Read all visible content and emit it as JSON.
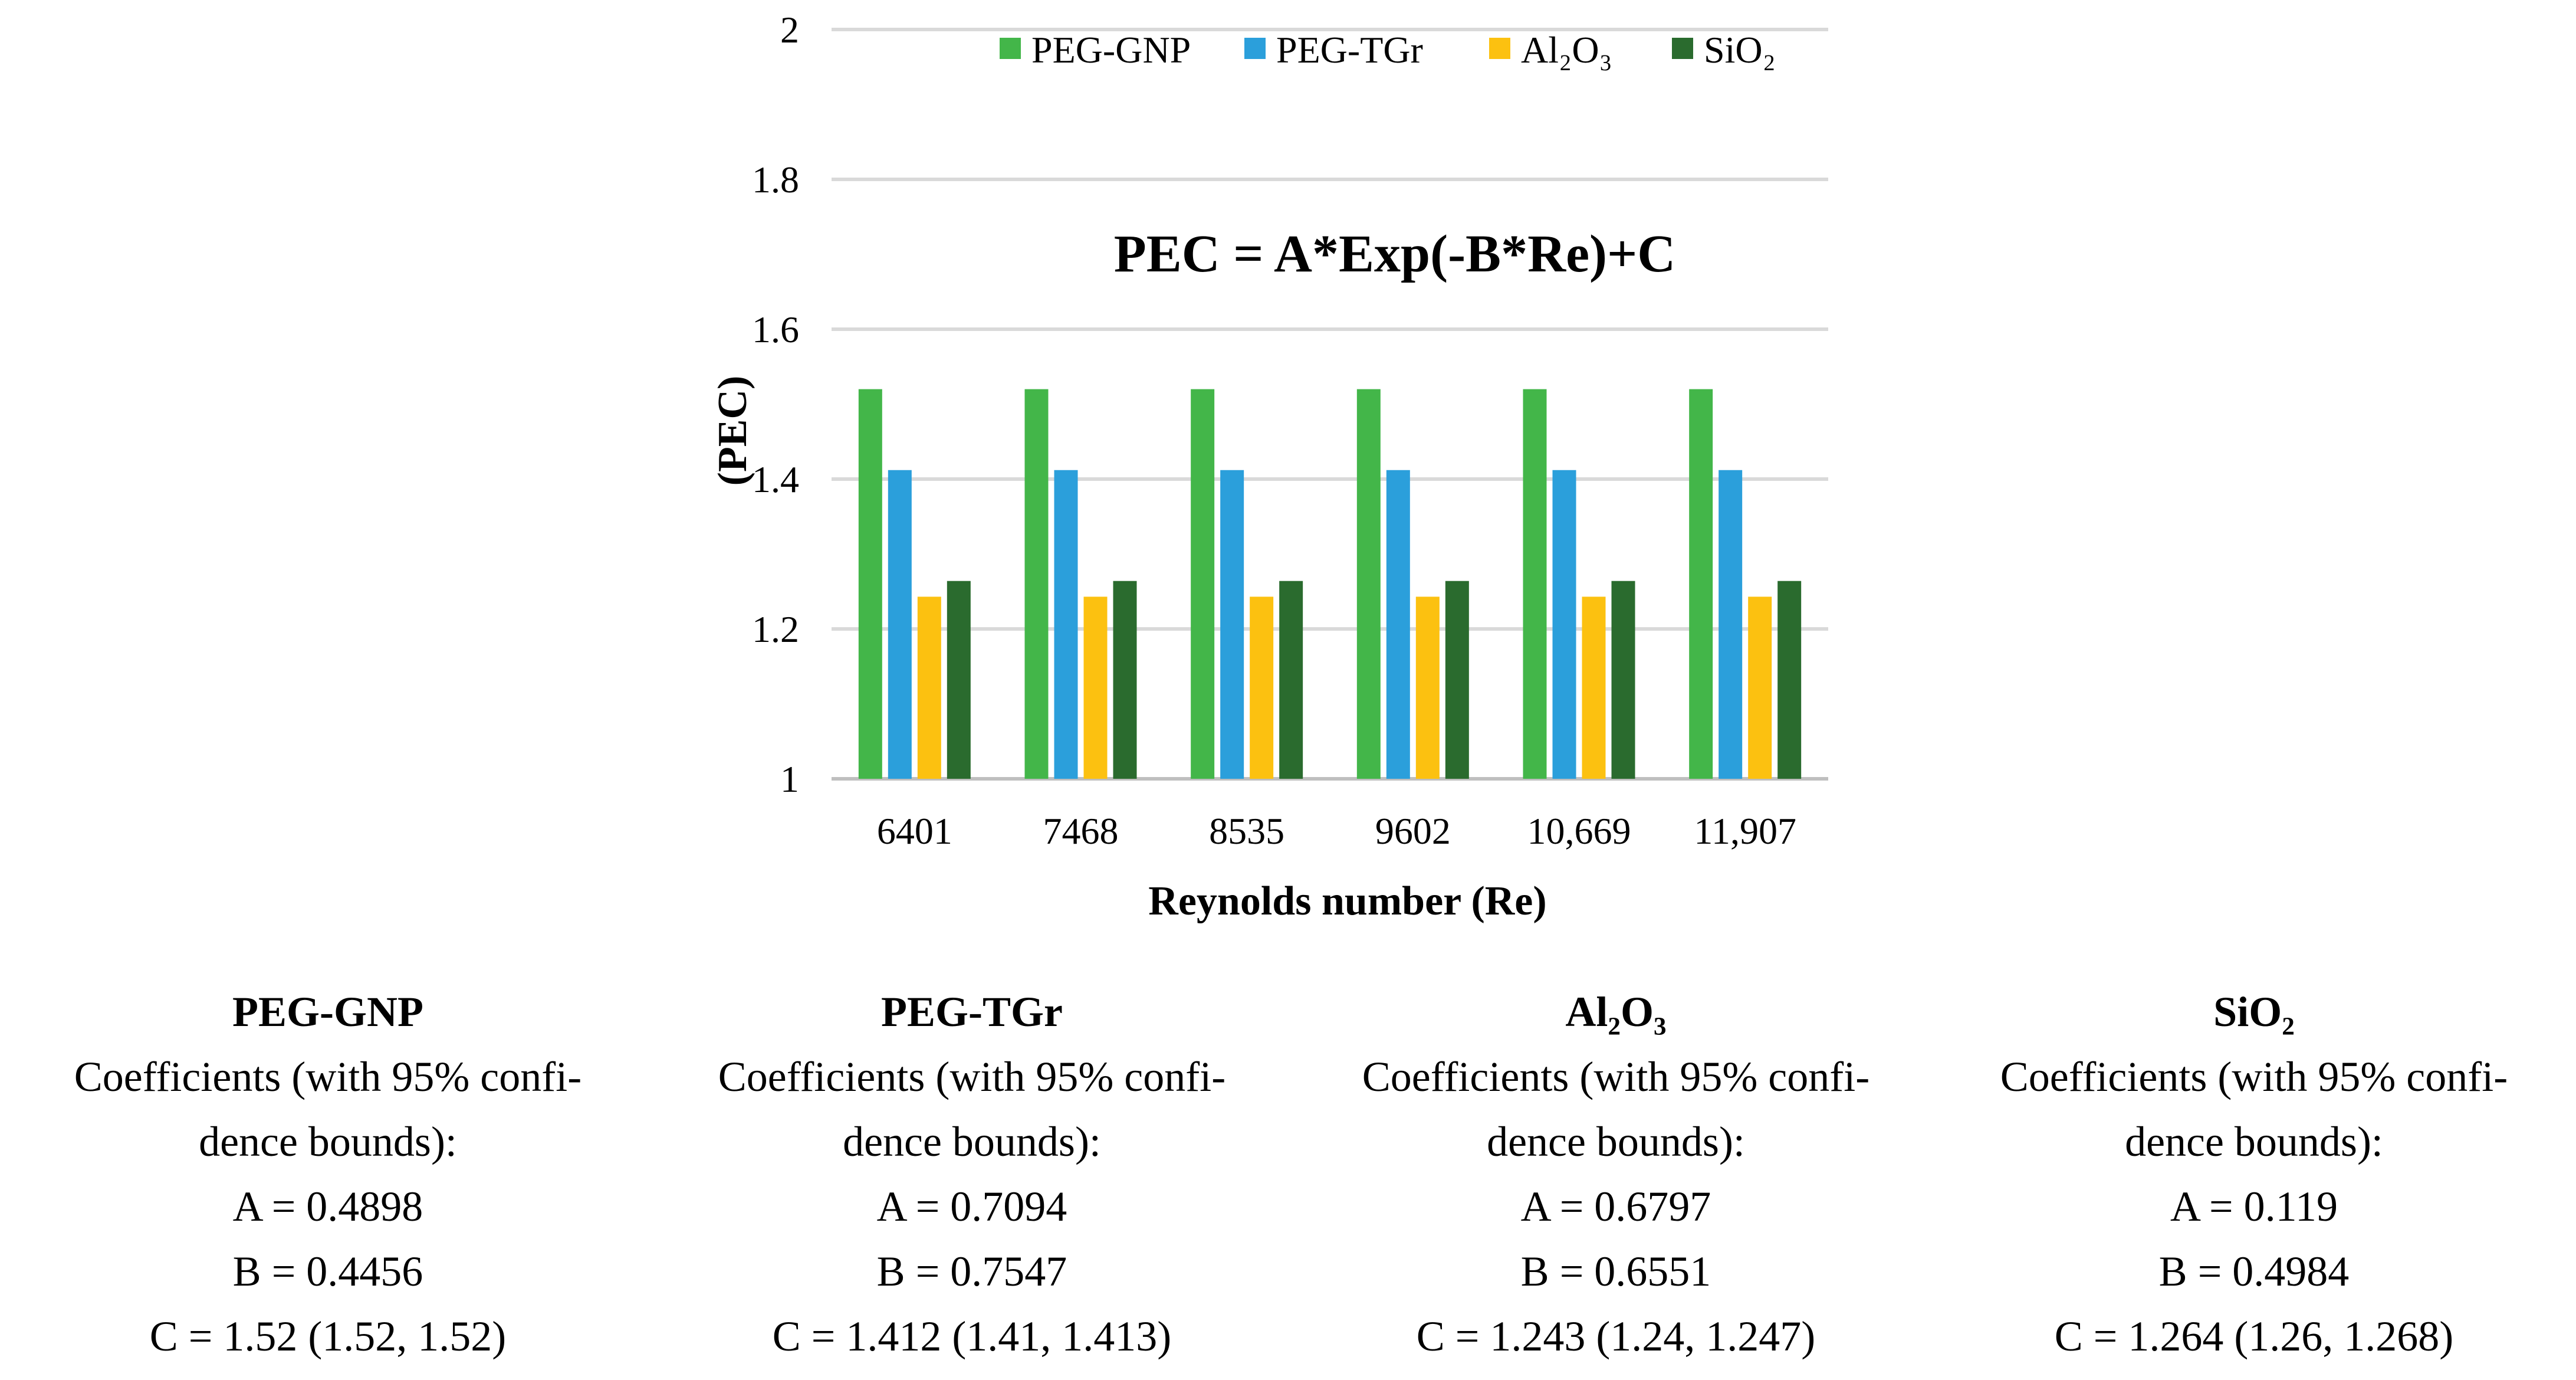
{
  "chart_data": {
    "type": "bar",
    "title": "PEC = A*Exp(-B*Re)+C",
    "xlabel": "Reynolds number (Re)",
    "ylabel": "(PEC)",
    "ylim": [
      1,
      2
    ],
    "yticks": [
      "1",
      "1.2",
      "1.4",
      "1.6",
      "1.8",
      "2"
    ],
    "ytick_values": [
      1,
      1.2,
      1.4,
      1.6,
      1.8,
      2
    ],
    "categories": [
      "6401",
      "7468",
      "8535",
      "9602",
      "10,669",
      "11,907"
    ],
    "legend_position": "top",
    "series": [
      {
        "name": "PEG-GNP",
        "color": "#43B649",
        "values": [
          1.52,
          1.52,
          1.52,
          1.52,
          1.52,
          1.52
        ]
      },
      {
        "name": "PEG-TGr",
        "color": "#2B9FDB",
        "values": [
          1.412,
          1.412,
          1.412,
          1.412,
          1.412,
          1.412
        ]
      },
      {
        "name": "Al₂O₃",
        "color": "#FCC110",
        "values": [
          1.243,
          1.243,
          1.243,
          1.243,
          1.243,
          1.243
        ]
      },
      {
        "name": "SiO₂",
        "color": "#2A6B2E",
        "values": [
          1.264,
          1.264,
          1.264,
          1.264,
          1.264,
          1.264
        ]
      }
    ]
  },
  "coefficients": [
    {
      "name": "PEG-GNP",
      "heading": "Coefficients (with 95% confi-",
      "heading2": "dence bounds):",
      "a": "A = 0.4898",
      "b": "B = 0.4456",
      "c": "C = 1.52 (1.52, 1.52)"
    },
    {
      "name": "PEG-TGr",
      "heading": "Coefficients (with 95% confi-",
      "heading2": "dence bounds):",
      "a": "A = 0.7094",
      "b": "B = 0.7547",
      "c": "C = 1.412 (1.41, 1.413)"
    },
    {
      "name": "Al₂O₃",
      "heading": "Coefficients (with 95% confi-",
      "heading2": "dence bounds):",
      "a": "A = 0.6797",
      "b": "B = 0.6551",
      "c": "C = 1.243 (1.24, 1.247)"
    },
    {
      "name": "SiO₂",
      "heading": "Coefficients (with 95% confi-",
      "heading2": "dence bounds):",
      "a": "A = 0.119",
      "b": "B = 0.4984",
      "c": "C = 1.264 (1.26, 1.268)"
    }
  ]
}
